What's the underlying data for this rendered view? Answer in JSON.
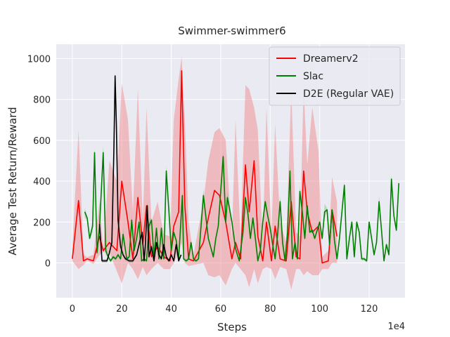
{
  "chart_data": {
    "type": "line",
    "title": "Swimmer-swimmer6",
    "xlabel": "Steps",
    "ylabel": "Average Test Return/Reward",
    "x_multiplier_label": "1e4",
    "xlim": [
      -6.5,
      134.5
    ],
    "ylim": [
      -170,
      1070
    ],
    "xticks": [
      0,
      20,
      40,
      60,
      80,
      100,
      120
    ],
    "yticks": [
      0,
      200,
      400,
      600,
      800,
      1000
    ],
    "grid": true,
    "legend_position": "upper right",
    "series": [
      {
        "name": "Dreamerv2",
        "color": "#ff0000",
        "band_color": "#f08080",
        "points": [
          [
            0,
            20
          ],
          [
            2.5,
            305
          ],
          [
            4.5,
            10
          ],
          [
            6,
            20
          ],
          [
            8.5,
            10
          ],
          [
            11,
            130
          ],
          [
            12.5,
            60
          ],
          [
            15,
            100
          ],
          [
            18,
            60
          ],
          [
            20,
            400
          ],
          [
            22.5,
            200
          ],
          [
            24.5,
            20
          ],
          [
            26.5,
            320
          ],
          [
            28.5,
            90
          ],
          [
            30,
            280
          ],
          [
            32,
            30
          ],
          [
            34.5,
            80
          ],
          [
            37,
            30
          ],
          [
            39.5,
            10
          ],
          [
            41,
            180
          ],
          [
            43,
            250
          ],
          [
            44.2,
            940
          ],
          [
            45.5,
            280
          ],
          [
            47,
            20
          ],
          [
            49,
            10
          ],
          [
            53,
            100
          ],
          [
            55,
            220
          ],
          [
            57.5,
            355
          ],
          [
            59.5,
            330
          ],
          [
            62,
            200
          ],
          [
            64.5,
            20
          ],
          [
            66,
            100
          ],
          [
            68,
            20
          ],
          [
            70,
            480
          ],
          [
            71.5,
            250
          ],
          [
            73.5,
            500
          ],
          [
            75,
            130
          ],
          [
            77,
            10
          ],
          [
            78.5,
            200
          ],
          [
            80.5,
            10
          ],
          [
            82,
            180
          ],
          [
            84,
            20
          ],
          [
            86.5,
            10
          ],
          [
            88.5,
            300
          ],
          [
            90.5,
            30
          ],
          [
            92,
            20
          ],
          [
            93.5,
            450
          ],
          [
            95,
            250
          ],
          [
            97,
            150
          ],
          [
            99.5,
            180
          ],
          [
            101,
            0
          ],
          [
            103.5,
            10
          ],
          [
            105,
            260
          ],
          [
            107,
            130
          ]
        ],
        "band": [
          [
            0,
            10,
            80
          ],
          [
            2.5,
            -30,
            650
          ],
          [
            4.5,
            -10,
            40
          ],
          [
            8.5,
            -5,
            40
          ],
          [
            11,
            40,
            300
          ],
          [
            15,
            50,
            500
          ],
          [
            18,
            -40,
            400
          ],
          [
            20,
            -100,
            880
          ],
          [
            22.5,
            0,
            700
          ],
          [
            24.5,
            -30,
            250
          ],
          [
            26.5,
            -80,
            850
          ],
          [
            28.5,
            -20,
            200
          ],
          [
            30,
            -60,
            760
          ],
          [
            32,
            -30,
            200
          ],
          [
            34.5,
            0,
            300
          ],
          [
            37,
            -30,
            140
          ],
          [
            39.5,
            -30,
            130
          ],
          [
            41,
            0,
            700
          ],
          [
            43,
            50,
            900
          ],
          [
            44.2,
            100,
            1010
          ],
          [
            45.5,
            0,
            700
          ],
          [
            47,
            -15,
            200
          ],
          [
            49,
            -10,
            40
          ],
          [
            53,
            0,
            300
          ],
          [
            55,
            -60,
            500
          ],
          [
            57.5,
            -70,
            640
          ],
          [
            59.5,
            -60,
            660
          ],
          [
            62,
            -110,
            600
          ],
          [
            64.5,
            -30,
            120
          ],
          [
            66,
            0,
            700
          ],
          [
            68,
            -30,
            120
          ],
          [
            70,
            -60,
            870
          ],
          [
            71.5,
            -120,
            850
          ],
          [
            73.5,
            -30,
            760
          ],
          [
            75,
            -100,
            650
          ],
          [
            77,
            -30,
            100
          ],
          [
            78.5,
            -20,
            760
          ],
          [
            80.5,
            -30,
            140
          ],
          [
            82,
            -80,
            680
          ],
          [
            84,
            -20,
            200
          ],
          [
            86.5,
            -30,
            100
          ],
          [
            88.5,
            -130,
            850
          ],
          [
            90.5,
            -30,
            150
          ],
          [
            92,
            -30,
            130
          ],
          [
            93.5,
            -60,
            860
          ],
          [
            95,
            -40,
            480
          ],
          [
            97,
            -60,
            760
          ],
          [
            99.5,
            -60,
            550
          ],
          [
            101,
            -30,
            30
          ],
          [
            103.5,
            -30,
            60
          ],
          [
            105,
            0,
            420
          ],
          [
            107,
            0,
            300
          ]
        ]
      },
      {
        "name": "Slac",
        "color": "#008000",
        "band_color": "#7cc07c",
        "points": [
          [
            5,
            250
          ],
          [
            6,
            220
          ],
          [
            7,
            120
          ],
          [
            8.2,
            180
          ],
          [
            9,
            540
          ],
          [
            10,
            50
          ],
          [
            11,
            180
          ],
          [
            12.5,
            540
          ],
          [
            13.5,
            60
          ],
          [
            14.5,
            30
          ],
          [
            15.5,
            10
          ],
          [
            16.5,
            30
          ],
          [
            17.5,
            20
          ],
          [
            18.5,
            40
          ],
          [
            19.5,
            20
          ],
          [
            20.5,
            140
          ],
          [
            22,
            20
          ],
          [
            23,
            30
          ],
          [
            24,
            210
          ],
          [
            25,
            60
          ],
          [
            26,
            120
          ],
          [
            27,
            200
          ],
          [
            28,
            10
          ],
          [
            29,
            20
          ],
          [
            30,
            10
          ],
          [
            31,
            180
          ],
          [
            32,
            210
          ],
          [
            33,
            30
          ],
          [
            34,
            170
          ],
          [
            35,
            20
          ],
          [
            36,
            170
          ],
          [
            37,
            20
          ],
          [
            38,
            450
          ],
          [
            39,
            260
          ],
          [
            40,
            60
          ],
          [
            41,
            150
          ],
          [
            42,
            110
          ],
          [
            43,
            20
          ],
          [
            44.5,
            330
          ],
          [
            45,
            20
          ],
          [
            46,
            10
          ],
          [
            47,
            20
          ],
          [
            48,
            100
          ],
          [
            49,
            20
          ],
          [
            50,
            10
          ],
          [
            51,
            20
          ],
          [
            53,
            330
          ],
          [
            55,
            120
          ],
          [
            57,
            30
          ],
          [
            58,
            120
          ],
          [
            59,
            180
          ],
          [
            61,
            520
          ],
          [
            62,
            200
          ],
          [
            62.7,
            320
          ],
          [
            63.5,
            270
          ],
          [
            64.5,
            200
          ],
          [
            66,
            70
          ],
          [
            67.5,
            10
          ],
          [
            69,
            150
          ],
          [
            70,
            320
          ],
          [
            71,
            240
          ],
          [
            72,
            120
          ],
          [
            73,
            220
          ],
          [
            74,
            120
          ],
          [
            75,
            10
          ],
          [
            76,
            60
          ],
          [
            77,
            200
          ],
          [
            78,
            300
          ],
          [
            79,
            230
          ],
          [
            80,
            170
          ],
          [
            81,
            90
          ],
          [
            82,
            20
          ],
          [
            83,
            140
          ],
          [
            84,
            300
          ],
          [
            85,
            100
          ],
          [
            86,
            10
          ],
          [
            87,
            150
          ],
          [
            88,
            450
          ],
          [
            89,
            20
          ],
          [
            90,
            100
          ],
          [
            91,
            20
          ],
          [
            92,
            350
          ],
          [
            93,
            250
          ],
          [
            94,
            120
          ],
          [
            95,
            280
          ],
          [
            96,
            150
          ],
          [
            97,
            160
          ],
          [
            98,
            120
          ],
          [
            99,
            160
          ],
          [
            100,
            200
          ],
          [
            101,
            120
          ],
          [
            102,
            250
          ],
          [
            103,
            260
          ],
          [
            104,
            90
          ],
          [
            105,
            260
          ],
          [
            106,
            110
          ],
          [
            107,
            20
          ],
          [
            108,
            120
          ],
          [
            110,
            380
          ],
          [
            111,
            20
          ],
          [
            112,
            120
          ],
          [
            113,
            200
          ],
          [
            114,
            30
          ],
          [
            115,
            200
          ],
          [
            116,
            150
          ],
          [
            117,
            20
          ],
          [
            118,
            20
          ],
          [
            119,
            10
          ],
          [
            120,
            200
          ],
          [
            122,
            40
          ],
          [
            123,
            100
          ],
          [
            124,
            300
          ],
          [
            125,
            160
          ],
          [
            126,
            10
          ],
          [
            127,
            90
          ],
          [
            128,
            40
          ],
          [
            129,
            410
          ],
          [
            130,
            230
          ],
          [
            131,
            160
          ],
          [
            132,
            390
          ]
        ],
        "band": [
          [
            5,
            220,
            270
          ],
          [
            8.2,
            150,
            210
          ],
          [
            9,
            510,
            560
          ],
          [
            10,
            30,
            80
          ],
          [
            12.5,
            510,
            580
          ],
          [
            13.5,
            40,
            90
          ],
          [
            20.5,
            120,
            170
          ],
          [
            24,
            190,
            240
          ],
          [
            31,
            150,
            220
          ],
          [
            38,
            420,
            480
          ],
          [
            44.5,
            300,
            360
          ],
          [
            53,
            300,
            360
          ],
          [
            61,
            490,
            550
          ],
          [
            62.7,
            290,
            350
          ],
          [
            70,
            290,
            350
          ],
          [
            84,
            270,
            330
          ],
          [
            88,
            420,
            480
          ],
          [
            92,
            320,
            380
          ],
          [
            102,
            220,
            290
          ],
          [
            110,
            350,
            400
          ],
          [
            124,
            270,
            330
          ],
          [
            129,
            380,
            430
          ],
          [
            132,
            360,
            420
          ]
        ]
      },
      {
        "name": "D2E (Regular VAE)",
        "color": "#000000",
        "band_color": "#888888",
        "points": [
          [
            11,
            190
          ],
          [
            12,
            10
          ],
          [
            13,
            10
          ],
          [
            14,
            10
          ],
          [
            15,
            50
          ],
          [
            16,
            100
          ],
          [
            16.8,
            560
          ],
          [
            17.3,
            915
          ],
          [
            17.8,
            680
          ],
          [
            18.5,
            210
          ],
          [
            19.5,
            80
          ],
          [
            20.5,
            40
          ],
          [
            21.5,
            20
          ],
          [
            23,
            10
          ],
          [
            24.5,
            10
          ],
          [
            26,
            40
          ],
          [
            27,
            90
          ],
          [
            28.2,
            150
          ],
          [
            29,
            10
          ],
          [
            29.5,
            80
          ],
          [
            30.3,
            280
          ],
          [
            31,
            30
          ],
          [
            32,
            80
          ],
          [
            33,
            10
          ],
          [
            34,
            100
          ],
          [
            35,
            40
          ],
          [
            36,
            20
          ],
          [
            37,
            90
          ],
          [
            38,
            30
          ],
          [
            39,
            10
          ],
          [
            40,
            40
          ],
          [
            41,
            10
          ],
          [
            42,
            90
          ],
          [
            43,
            10
          ],
          [
            44,
            40
          ]
        ],
        "band": [
          [
            11,
            170,
            210
          ],
          [
            17.3,
            900,
            930
          ],
          [
            30.3,
            260,
            300
          ],
          [
            42,
            80,
            100
          ]
        ]
      }
    ]
  }
}
